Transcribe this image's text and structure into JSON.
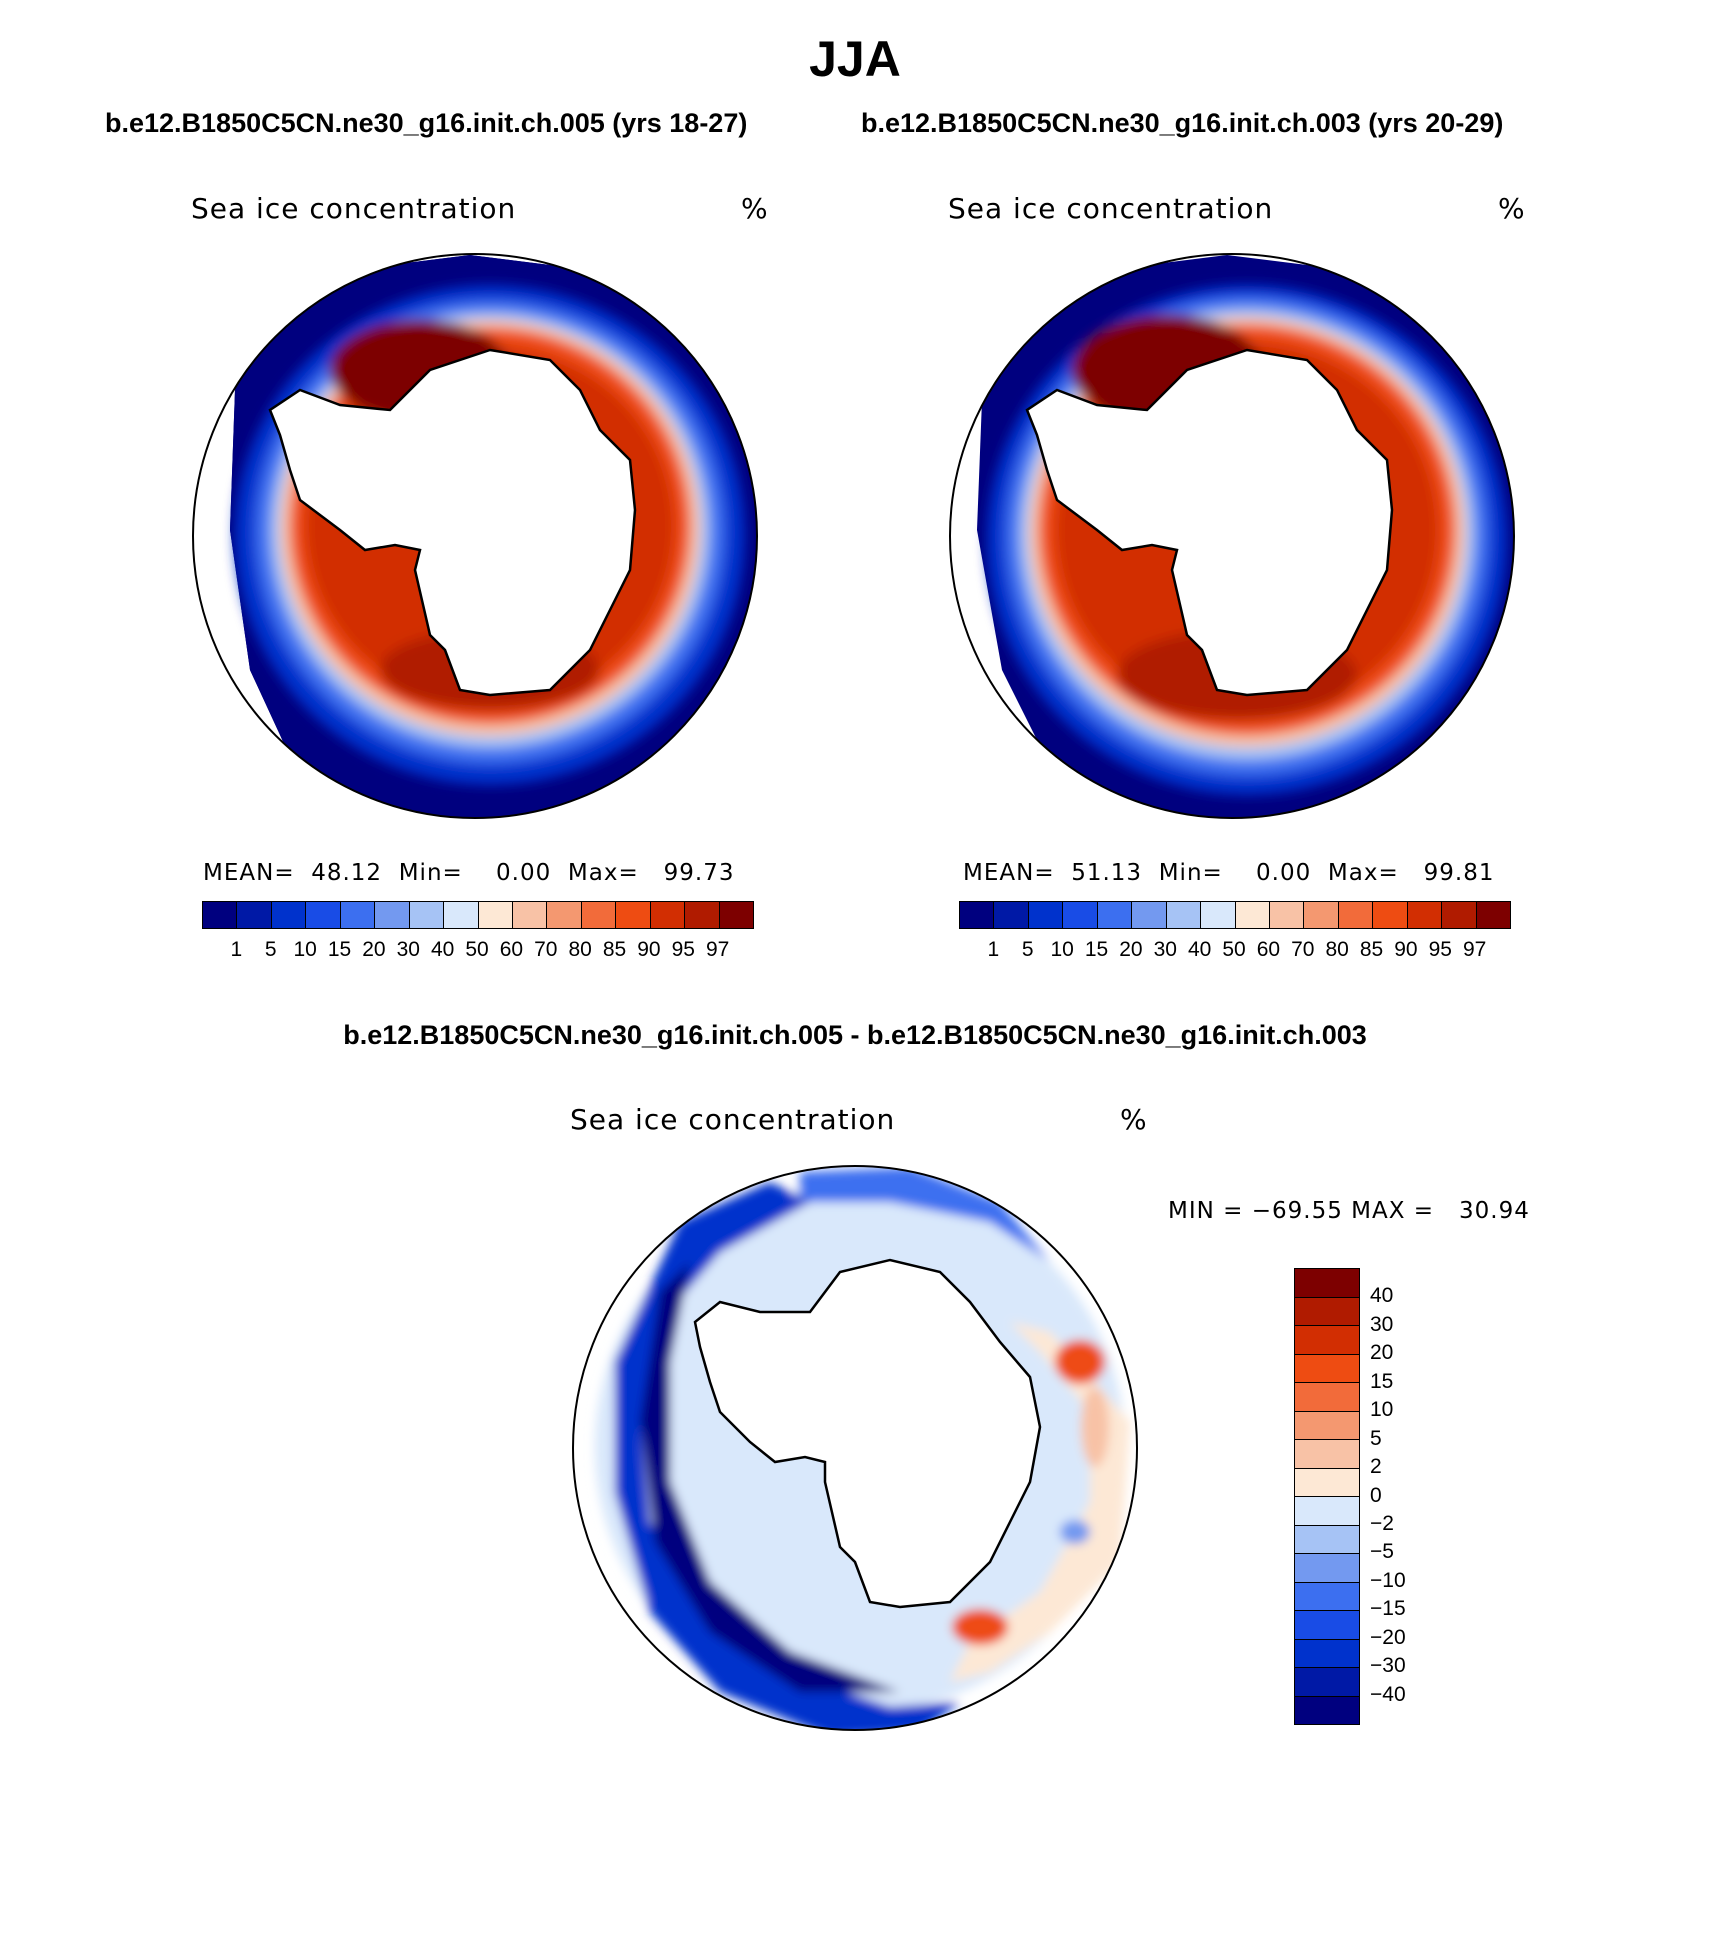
{
  "season": "JJA",
  "subtitle_left": "b.e12.B1850C5CN.ne30_g16.init.ch.005 (yrs 18-27)",
  "subtitle_right": "b.e12.B1850C5CN.ne30_g16.init.ch.003 (yrs 20-29)",
  "diff_title": "b.e12.B1850C5CN.ne30_g16.init.ch.005 - b.e12.B1850C5CN.ne30_g16.init.ch.003",
  "map_left": {
    "variable": "Sea ice concentration",
    "units": "%",
    "mean_label": "MEAN=",
    "mean_value": "48.12",
    "min_label": "Min=",
    "min_value": "0.00",
    "max_label": "Max=",
    "max_value": "99.73"
  },
  "map_right": {
    "variable": "Sea ice concentration",
    "units": "%",
    "mean_label": "MEAN=",
    "mean_value": "51.13",
    "min_label": "Min=",
    "min_value": "0.00",
    "max_label": "Max=",
    "max_value": "99.81"
  },
  "map_diff": {
    "variable": "Sea ice concentration",
    "units": "%",
    "minmax_text": "MIN = −69.55 MAX =   30.94"
  },
  "abs_colorbar": {
    "colors": [
      "#00007f",
      "#0019a6",
      "#0032cc",
      "#194ce6",
      "#3c6ff0",
      "#7399f0",
      "#a6c3f5",
      "#d9e8fb",
      "#fde8d5",
      "#f8c2a6",
      "#f49870",
      "#f26b3a",
      "#ee4c12",
      "#d22e02",
      "#b01b00",
      "#7d0000"
    ],
    "tick_labels": [
      "1",
      "5",
      "10",
      "15",
      "20",
      "30",
      "40",
      "50",
      "60",
      "70",
      "80",
      "85",
      "90",
      "95",
      "97"
    ]
  },
  "diff_colorbar": {
    "colors": [
      "#7d0000",
      "#b01b00",
      "#d22e02",
      "#ee4c12",
      "#f26b3a",
      "#f49870",
      "#f8c2a6",
      "#fde8d5",
      "#d9e8fb",
      "#a6c3f5",
      "#7399f0",
      "#3c6ff0",
      "#194ce6",
      "#0032cc",
      "#0019a6",
      "#00007f"
    ],
    "tick_labels": [
      "40",
      "30",
      "20",
      "15",
      "10",
      "5",
      "2",
      "0",
      "−2",
      "−5",
      "−10",
      "−15",
      "−20",
      "−30",
      "−40"
    ]
  }
}
